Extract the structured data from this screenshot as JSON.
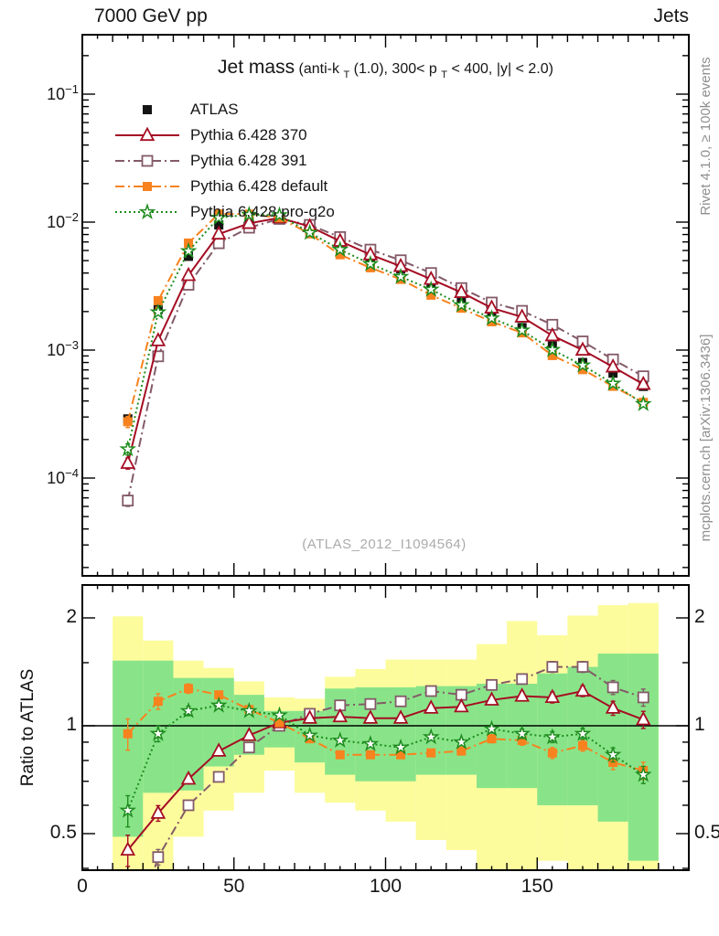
{
  "header": {
    "left": "7000 GeV pp",
    "right": "Jets"
  },
  "title": {
    "parts": [
      {
        "text": "Jet mass"
      },
      {
        "text": " (anti-k"
      },
      {
        "text": "T"
      },
      {
        "text": "(1.0), 300< p"
      },
      {
        "text": "T"
      },
      {
        "text": " < 400, |y| < 2.0)"
      }
    ]
  },
  "watermark": "(ATLAS_2012_I1094564)",
  "side_captions": {
    "top": "Rivet 4.1.0, ≥ 100k events",
    "bottom": "mcplots.cern.ch [arXiv:1306.3436]"
  },
  "ratio_ylabel": "Ratio to ATLAS",
  "legend": {
    "entries": [
      {
        "label": "ATLAS",
        "color": "#141414",
        "marker": "square-filled",
        "line": "none"
      },
      {
        "label": "Pythia 6.428 370",
        "color": "#A50D23",
        "marker": "triangle-open",
        "line": "solid"
      },
      {
        "label": "Pythia 6.428 391",
        "color": "#835A68",
        "marker": "square-open",
        "line": "dashdot"
      },
      {
        "label": "Pythia 6.428 default",
        "color": "#F8821E",
        "marker": "square-filled",
        "line": "dashdot"
      },
      {
        "label": "Pythia 6.428 pro-q2o",
        "color": "#1E8C1E",
        "marker": "star-open",
        "line": "dotted"
      }
    ]
  },
  "chart_data": {
    "type": "line",
    "title": "Jet mass (anti-kT(1.0), 300< pT < 400, |y| < 2.0)",
    "xlim": [
      0,
      200
    ],
    "x_major_ticks": [
      0,
      50,
      100,
      150
    ],
    "x_medium_step": 10,
    "x_minor_step": 5,
    "bin_edges": [
      10,
      20,
      30,
      40,
      50,
      60,
      70,
      80,
      90,
      100,
      110,
      120,
      130,
      140,
      150,
      160,
      170,
      180,
      190
    ],
    "x_centers": [
      15,
      25,
      35,
      45,
      55,
      65,
      75,
      85,
      95,
      105,
      115,
      125,
      135,
      145,
      155,
      165,
      175,
      185
    ],
    "main_axis": {
      "scale": "log",
      "ylim": [
        1.7e-05,
        0.29
      ],
      "labeled_exponents": [
        -1,
        -2,
        -3,
        -4
      ]
    },
    "ratio_axis": {
      "scale": "log",
      "ylim": [
        0.395,
        2.47
      ],
      "labeled_ticks": [
        2,
        1,
        0.5
      ],
      "labeled_tick_texts": [
        "2",
        "1",
        "0.5"
      ],
      "minor_ticks": [
        0.4,
        0.6,
        0.7,
        0.8,
        0.9,
        1.5
      ]
    },
    "reference": {
      "name": "ATLAS",
      "color": "#141414",
      "marker": "square-filled",
      "values": [
        0.00029,
        0.00208,
        0.0054,
        0.0095,
        0.0104,
        0.0106,
        0.0088,
        0.0067,
        0.0053,
        0.0043,
        0.0032,
        0.0025,
        0.00181,
        0.0015,
        0.00108,
        0.0008,
        0.00066,
        0.00052
      ],
      "rel_err": [
        0.05,
        0.03,
        0.02,
        0.015,
        0.012,
        0.012,
        0.012,
        0.012,
        0.012,
        0.015,
        0.015,
        0.015,
        0.02,
        0.02,
        0.025,
        0.03,
        0.035,
        0.04
      ]
    },
    "series": [
      {
        "name": "Pythia 6.428 391",
        "color": "#835A68",
        "marker": "square-open",
        "line": "dashdot",
        "ratio": [
          0.23,
          0.43,
          0.6,
          0.72,
          0.87,
          1.0,
          1.08,
          1.14,
          1.15,
          1.17,
          1.25,
          1.22,
          1.3,
          1.35,
          1.46,
          1.46,
          1.28,
          1.2
        ]
      },
      {
        "name": "Pythia 6.428 370",
        "color": "#A50D23",
        "marker": "triangle-open",
        "line": "solid",
        "ratio": [
          0.45,
          0.57,
          0.71,
          0.85,
          0.94,
          1.02,
          1.05,
          1.06,
          1.05,
          1.05,
          1.12,
          1.13,
          1.18,
          1.21,
          1.2,
          1.25,
          1.12,
          1.04
        ]
      },
      {
        "name": "Pythia 6.428 default",
        "color": "#F8821E",
        "marker": "square-filled",
        "line": "dashdot",
        "ratio": [
          0.95,
          1.17,
          1.27,
          1.22,
          1.11,
          1.02,
          0.92,
          0.83,
          0.83,
          0.83,
          0.84,
          0.85,
          0.92,
          0.91,
          0.84,
          0.88,
          0.79,
          0.75
        ]
      },
      {
        "name": "Pythia 6.428 pro-q2o",
        "color": "#1E8C1E",
        "marker": "star-open",
        "line": "dotted",
        "ratio": [
          0.58,
          0.95,
          1.1,
          1.14,
          1.1,
          1.07,
          0.94,
          0.91,
          0.89,
          0.87,
          0.93,
          0.9,
          0.98,
          0.95,
          0.93,
          0.95,
          0.83,
          0.73
        ]
      }
    ],
    "series_rel_err": [
      0.1,
      0.05,
      0.03,
      0.02,
      0.015,
      0.015,
      0.015,
      0.015,
      0.015,
      0.02,
      0.02,
      0.02,
      0.025,
      0.03,
      0.035,
      0.035,
      0.045,
      0.055
    ],
    "bands": {
      "yellow": {
        "color": "#FCFC9C",
        "lo": [
          0.38,
          0.38,
          0.49,
          0.58,
          0.65,
          0.75,
          0.65,
          0.61,
          0.58,
          0.54,
          0.48,
          0.45,
          0.38,
          0.38,
          0.42,
          0.38,
          0.38,
          0.38
        ],
        "hi": [
          2.02,
          1.73,
          1.52,
          1.45,
          1.33,
          1.2,
          1.19,
          1.37,
          1.44,
          1.53,
          1.53,
          1.53,
          1.69,
          1.96,
          1.79,
          2.03,
          2.17,
          2.2
        ]
      },
      "green": {
        "color": "#89E489",
        "lo": [
          0.49,
          0.65,
          0.66,
          0.77,
          0.83,
          0.87,
          0.79,
          0.73,
          0.7,
          0.7,
          0.73,
          0.73,
          0.67,
          0.67,
          0.6,
          0.6,
          0.54,
          0.42
        ],
        "hi": [
          1.52,
          1.52,
          1.36,
          1.36,
          1.22,
          1.1,
          1.1,
          1.27,
          1.28,
          1.28,
          1.29,
          1.29,
          1.31,
          1.31,
          1.4,
          1.46,
          1.59,
          1.59
        ]
      }
    }
  }
}
